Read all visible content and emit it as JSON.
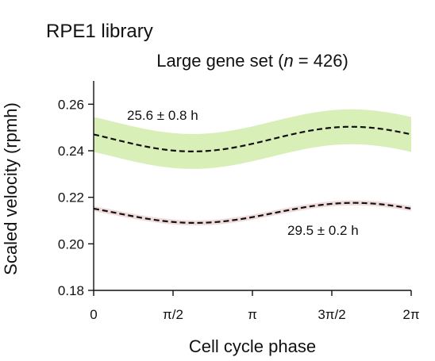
{
  "library_title": "RPE1 library",
  "chart_data": {
    "type": "line",
    "title_prefix": "Large gene set (",
    "title_n_symbol": "n",
    "title_suffix": " = 426)",
    "xlabel": "Cell cycle phase",
    "ylabel": "Scaled velocity (rpmh)",
    "xlim": [
      0,
      6.2832
    ],
    "ylim": [
      0.18,
      0.27
    ],
    "grid": false,
    "x_ticks": [
      {
        "value": 0,
        "label": "0"
      },
      {
        "value": 1.5708,
        "label": "π/2"
      },
      {
        "value": 3.1416,
        "label": "π"
      },
      {
        "value": 4.7124,
        "label": "3π/2"
      },
      {
        "value": 6.2832,
        "label": "2π"
      }
    ],
    "y_ticks": [
      {
        "value": 0.18,
        "label": "0.18"
      },
      {
        "value": 0.2,
        "label": "0.20"
      },
      {
        "value": 0.22,
        "label": "0.22"
      },
      {
        "value": 0.24,
        "label": "0.24"
      },
      {
        "value": 0.26,
        "label": "0.26"
      }
    ],
    "series": [
      {
        "mean": 0.245,
        "amplitude": 0.0053,
        "peak_phase": 5.1,
        "band_halfwidth": 0.0075,
        "line_color": "#111111",
        "band_color": "#d9efb8",
        "annotation": "25.6 ± 0.8 h"
      },
      {
        "mean": 0.2133,
        "amplitude": 0.0043,
        "peak_phase": 5.15,
        "band_halfwidth": 0.0011,
        "line_color": "#111111",
        "band_color": "#f1dcdc",
        "annotation": "29.5 ± 0.2 h"
      }
    ]
  }
}
